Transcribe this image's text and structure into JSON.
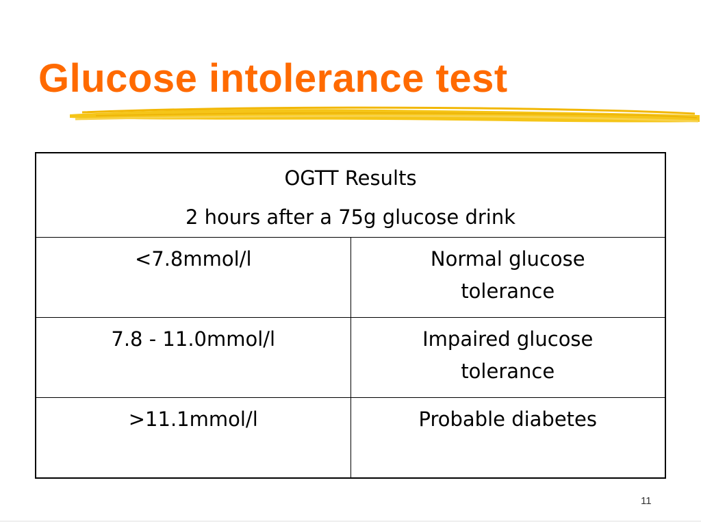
{
  "colors": {
    "title": "#ff6a00",
    "highlight": "#f5c518",
    "text": "#000000",
    "border": "#000000"
  },
  "slide": {
    "title": "Glucose intolerance test",
    "page_number": "11"
  },
  "table": {
    "header": {
      "line1": "OGTT Results",
      "line2": "2 hours after a 75g glucose drink"
    },
    "rows": [
      {
        "range": "<7.8mmol/l",
        "result_line1": "Normal glucose",
        "result_line2": "tolerance"
      },
      {
        "range": "7.8 - 11.0mmol/l",
        "result_line1": "Impaired glucose",
        "result_line2": "tolerance"
      },
      {
        "range": ">11.1mmol/l",
        "result_line1": "Probable diabetes",
        "result_line2": ""
      }
    ]
  }
}
